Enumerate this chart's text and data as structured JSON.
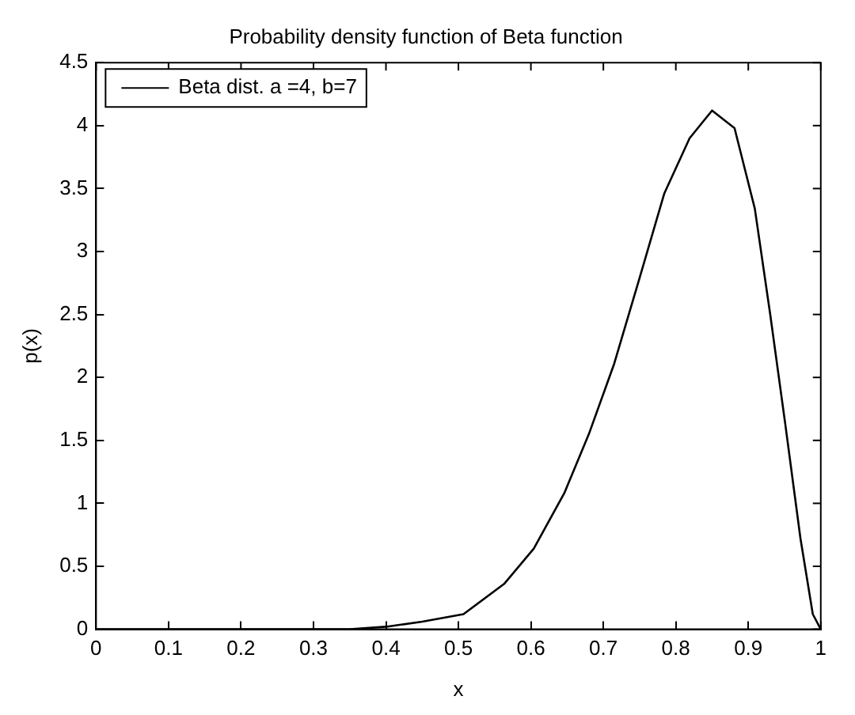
{
  "chart_data": {
    "type": "line",
    "title": "Probability density function of Beta function",
    "xlabel": "x",
    "ylabel": "p(x)",
    "series": [
      {
        "name": "Beta dist. a =4, b=7",
        "color": "#000000",
        "x": [
          0,
          0.1,
          0.2,
          0.3,
          0.35,
          0.4,
          0.45,
          0.507,
          0.563,
          0.604,
          0.646,
          0.68,
          0.715,
          0.75,
          0.784,
          0.819,
          0.85,
          0.881,
          0.909,
          0.93,
          0.951,
          0.972,
          0.989,
          1
        ],
        "values": [
          0,
          0,
          0,
          0,
          0,
          0.02,
          0.06,
          0.12,
          0.36,
          0.64,
          1.08,
          1.55,
          2.11,
          2.79,
          3.46,
          3.9,
          4.12,
          3.98,
          3.34,
          2.51,
          1.63,
          0.72,
          0.12,
          0
        ]
      }
    ],
    "xlim": [
      0,
      1
    ],
    "xticks": [
      0,
      0.1,
      0.2,
      0.3,
      0.4,
      0.5,
      0.6,
      0.7,
      0.8,
      0.9,
      1
    ],
    "ylim": [
      0,
      4.5
    ],
    "yticks": [
      0,
      0.5,
      1,
      1.5,
      2,
      2.5,
      3,
      3.5,
      4,
      4.5
    ],
    "grid": false,
    "legend": "top left",
    "marker": "none",
    "line_style": "solid"
  }
}
